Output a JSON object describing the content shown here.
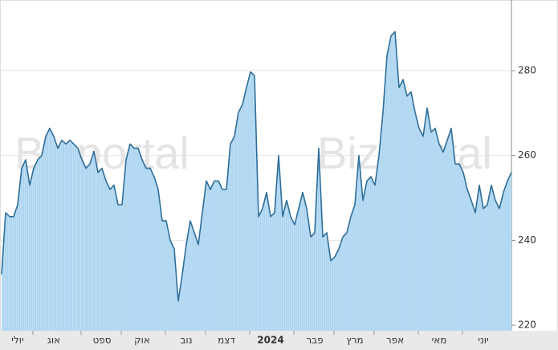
{
  "chart_data": {
    "type": "area",
    "watermark": "Bizportal",
    "categories": [
      null,
      null,
      null,
      null,
      "יולי",
      null,
      null,
      null,
      null,
      null,
      null,
      null,
      null,
      "אוג",
      null,
      null,
      null,
      null,
      null,
      null,
      null,
      null,
      null,
      null,
      null,
      "ספט",
      null,
      null,
      null,
      null,
      null,
      null,
      null,
      null,
      null,
      "אוק",
      null,
      null,
      null,
      null,
      null,
      null,
      null,
      null,
      null,
      null,
      "נוב",
      null,
      null,
      null,
      null,
      null,
      null,
      null,
      null,
      null,
      "דצמ",
      null,
      null,
      null,
      null,
      null,
      null,
      null,
      null,
      null,
      null,
      "2024",
      null,
      null,
      null,
      null,
      null,
      null,
      null,
      null,
      null,
      null,
      "פבר",
      null,
      null,
      null,
      null,
      null,
      null,
      null,
      null,
      null,
      "מרץ",
      null,
      null,
      null,
      null,
      null,
      null,
      null,
      null,
      null,
      "אפר",
      null,
      null,
      null,
      null,
      null,
      null,
      null,
      null,
      null,
      null,
      "מאי",
      null,
      null,
      null,
      null,
      null,
      null,
      null,
      null,
      null,
      null,
      "יוני",
      null,
      null,
      null,
      null,
      null,
      null,
      null
    ],
    "values": [
      232,
      246.5,
      245.6,
      245.6,
      248.4,
      257,
      259,
      253,
      257,
      259,
      260,
      264.5,
      266.4,
      264.5,
      261.7,
      263.6,
      262.7,
      263.6,
      262.7,
      261.7,
      259,
      257,
      258,
      261,
      256,
      257,
      254,
      252,
      253,
      248.4,
      248.4,
      259,
      262.7,
      261.7,
      261.7,
      259,
      257,
      257,
      255,
      252,
      244.6,
      244.6,
      240,
      238,
      225.7,
      232,
      239,
      244.6,
      241.8,
      239,
      246.5,
      254,
      252,
      254,
      254,
      252,
      252,
      262.7,
      264.5,
      270.2,
      272,
      276,
      279.7,
      278.8,
      245.6,
      247.5,
      251.3,
      245.6,
      246.5,
      260,
      245.6,
      249.4,
      245.6,
      243.7,
      247.5,
      251.3,
      247.5,
      240.8,
      241.8,
      261.7,
      240.8,
      241.8,
      235.2,
      236.1,
      238,
      240.8,
      241.8,
      245.6,
      248.4,
      260,
      249.4,
      254,
      255,
      253,
      260,
      270.2,
      283.5,
      288.2,
      289.2,
      276,
      277.9,
      274,
      275,
      270.2,
      266.4,
      264.5,
      271.2,
      265.5,
      266.4,
      262.7,
      260.8,
      263.6,
      266.4,
      258,
      258,
      256,
      252,
      249.4,
      246.5,
      253,
      247.5,
      248.4,
      253,
      249.4,
      247.5,
      251.3,
      254,
      256
    ],
    "color": "#2f6e99",
    "fill": "#acd5f1",
    "ylim": [
      218.7,
      295.7
    ],
    "yticks": [
      220,
      240,
      260,
      280
    ],
    "grid": true
  }
}
